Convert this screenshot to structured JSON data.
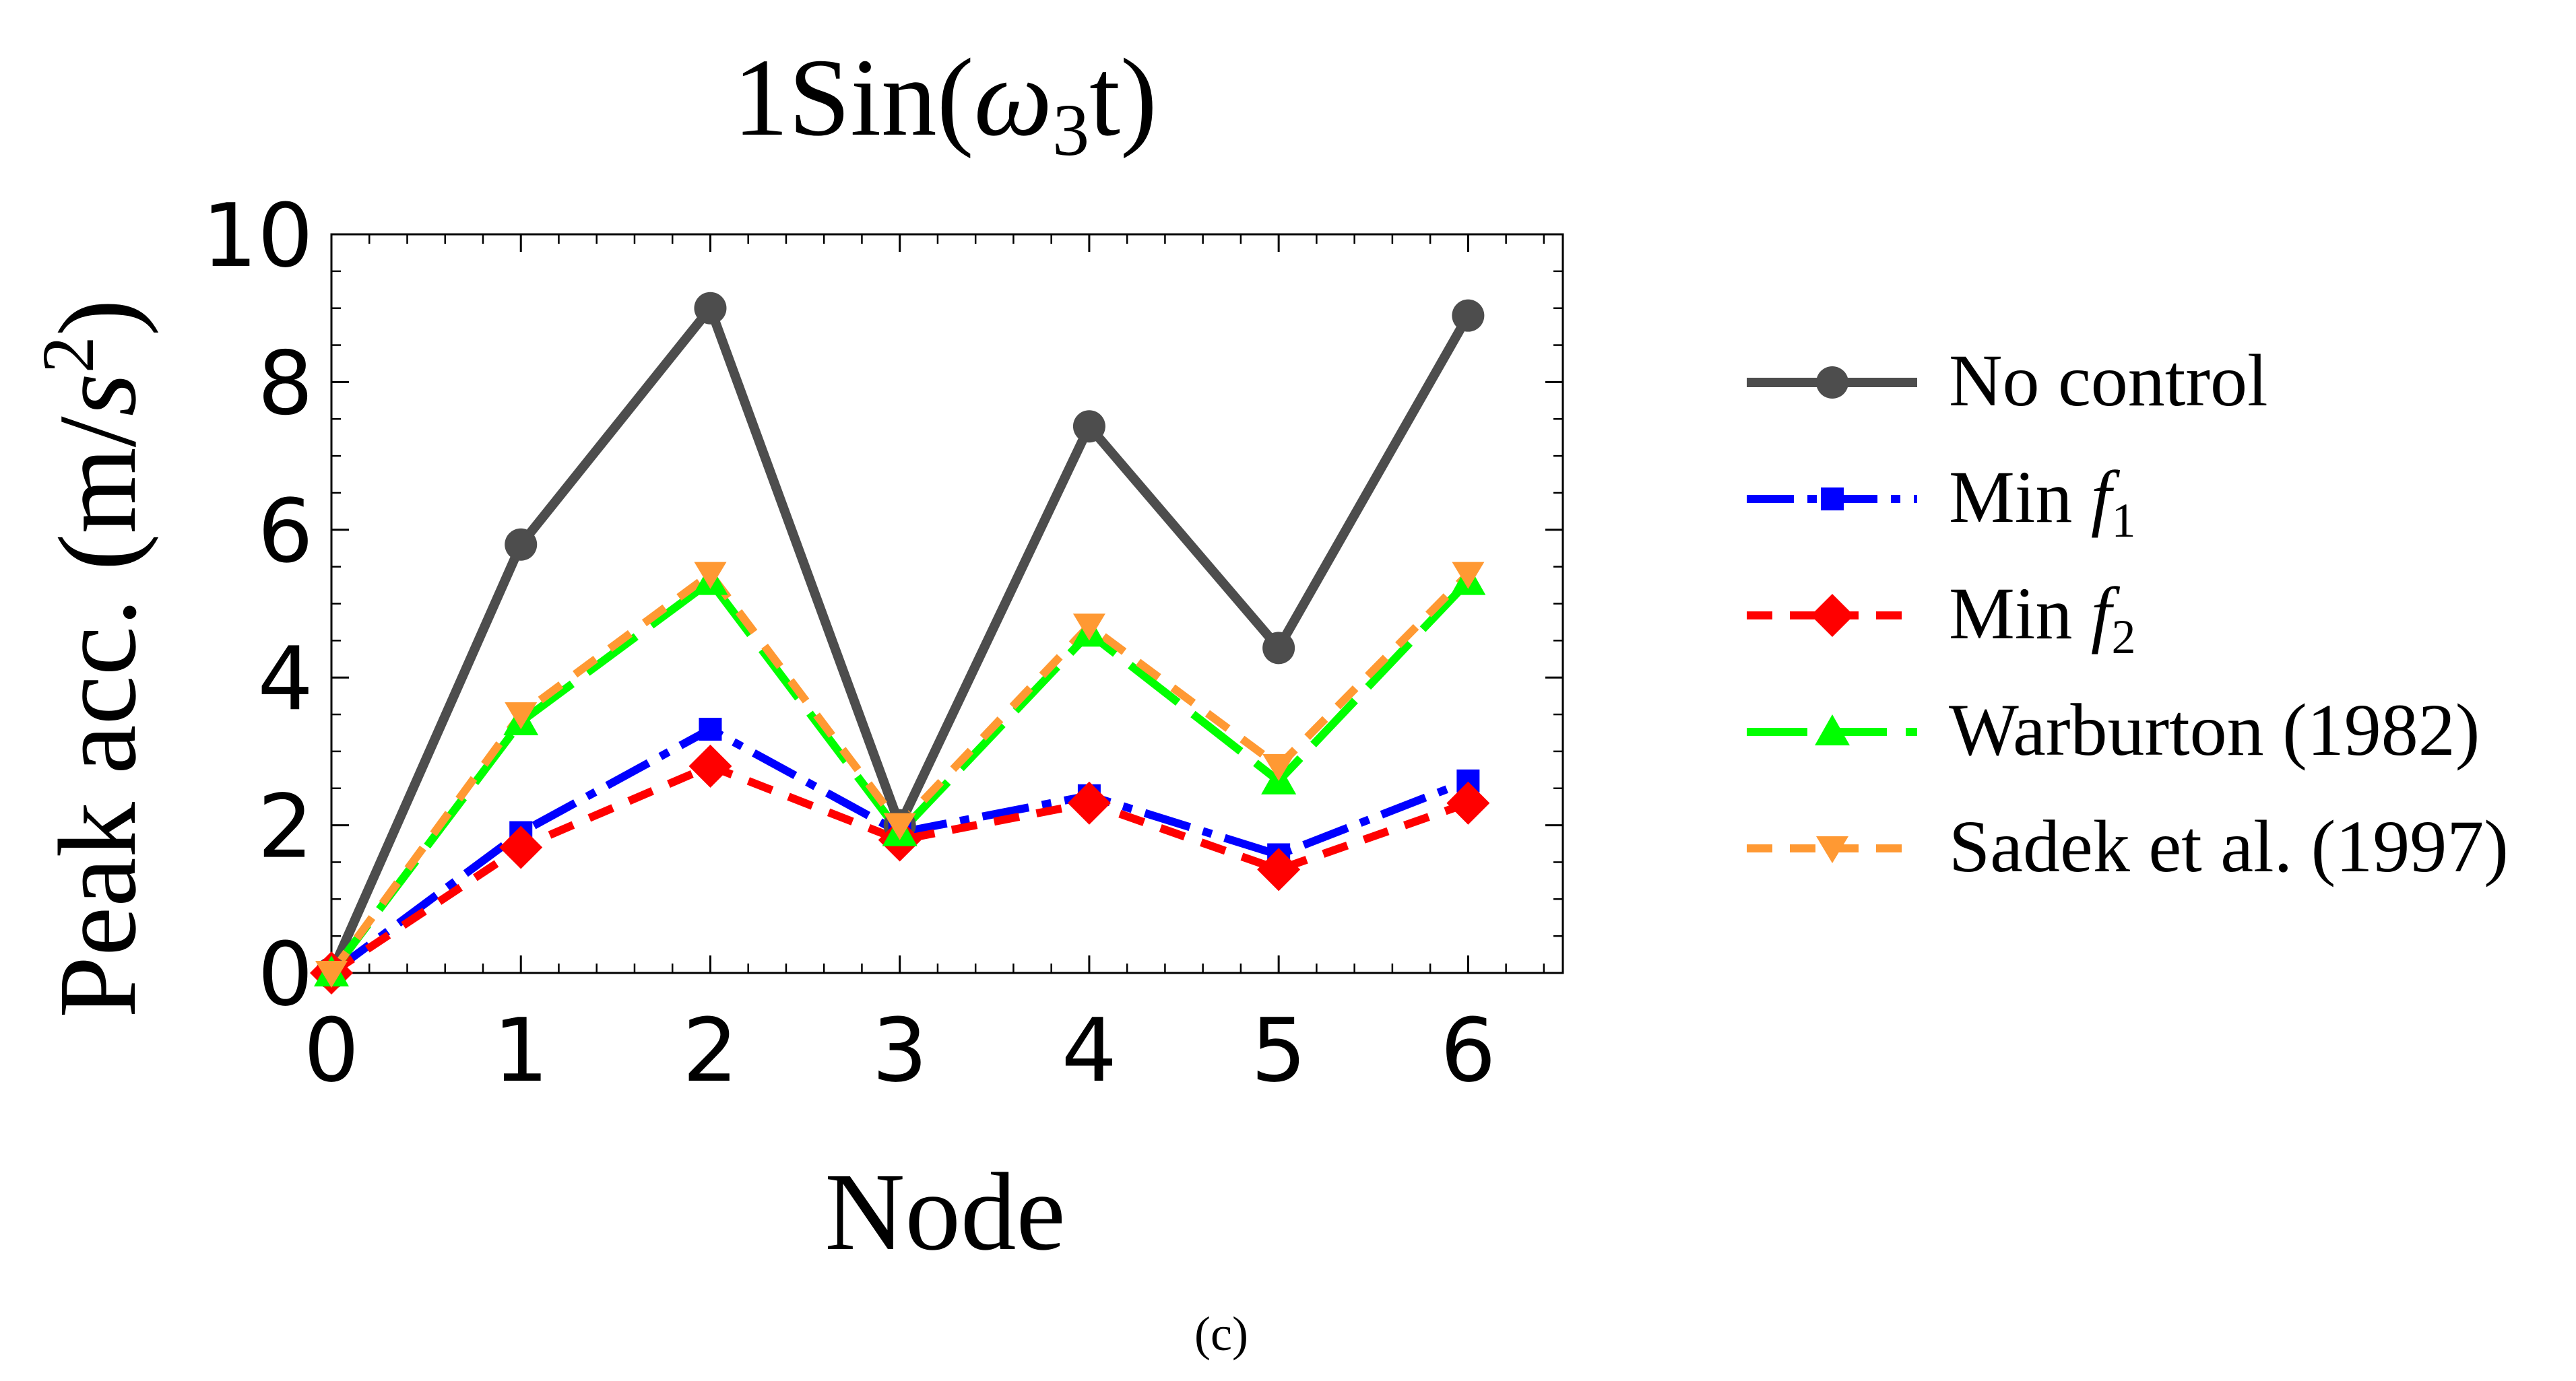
{
  "chart_data": {
    "type": "line",
    "title_prefix": "1Sin(",
    "title_omega": "ω",
    "title_subscript": "3",
    "title_suffix": "t)",
    "xlabel": "Node",
    "ylabel_main": "Peak acc. (m/",
    "ylabel_s": "s",
    "ylabel_sup": "2",
    "ylabel_close": ")",
    "xlim": [
      0,
      6.5
    ],
    "ylim": [
      0,
      10
    ],
    "x_ticks": [
      "0",
      "1",
      "2",
      "3",
      "4",
      "5",
      "6"
    ],
    "y_ticks": [
      "0",
      "2",
      "4",
      "6",
      "8",
      "10"
    ],
    "x": [
      0,
      1,
      2,
      3,
      4,
      5,
      6
    ],
    "series": [
      {
        "name": "No control",
        "legend_text": "No control",
        "legend_sub": "",
        "color": "#4d4d4d",
        "marker": "circle",
        "dash": "solid",
        "values": [
          0,
          5.8,
          9.0,
          2.0,
          7.4,
          4.4,
          8.9
        ]
      },
      {
        "name": "Min f1",
        "legend_text": "Min ",
        "legend_italic": "f",
        "legend_sub": "1",
        "color": "#0000ff",
        "marker": "square",
        "dash": "dashdot",
        "values": [
          0,
          1.9,
          3.3,
          1.9,
          2.4,
          1.6,
          2.6
        ]
      },
      {
        "name": "Min f2",
        "legend_text": "Min ",
        "legend_italic": "f",
        "legend_sub": "2",
        "color": "#ff0000",
        "marker": "diamond",
        "dash": "dash",
        "values": [
          0,
          1.7,
          2.8,
          1.8,
          2.3,
          1.4,
          2.3
        ]
      },
      {
        "name": "Warburton (1982)",
        "legend_text": "Warburton (1982)",
        "legend_sub": "",
        "color": "#00ff00",
        "marker": "triangle-up",
        "dash": "longdash",
        "values": [
          0,
          3.4,
          5.3,
          1.9,
          4.6,
          2.6,
          5.3
        ]
      },
      {
        "name": "Sadek et al. (1997)",
        "legend_text": "Sadek et al. (1997)",
        "legend_sub": "",
        "color": "#ff9933",
        "marker": "triangle-down",
        "dash": "dash",
        "values": [
          0,
          3.5,
          5.4,
          2.0,
          4.7,
          2.8,
          5.4
        ]
      }
    ]
  },
  "caption": "(c)"
}
